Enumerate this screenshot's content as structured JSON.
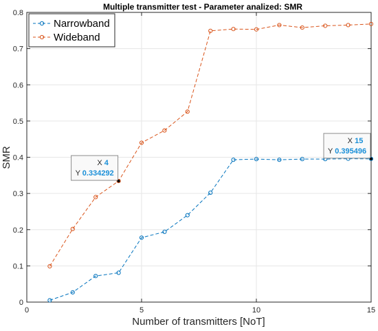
{
  "colors": {
    "narrowband": "#0072BD",
    "wideband": "#D95319",
    "grid": "#e6e6e6",
    "axis": "#262626",
    "datatip_value": "#1a8fd8"
  },
  "chart_data": {
    "type": "line",
    "title": "Multiple transmitter test - Parameter analized: SMR",
    "xlabel": "Number of transmitters [NoT]",
    "ylabel": "SMR",
    "xlim": [
      0,
      15
    ],
    "ylim": [
      0,
      0.8
    ],
    "xticks": [
      0,
      5,
      10,
      15
    ],
    "yticks": [
      0,
      0.1,
      0.2,
      0.3,
      0.4,
      0.5,
      0.6,
      0.7,
      0.8
    ],
    "xtick_labels": [
      "0",
      "5",
      "10",
      "15"
    ],
    "ytick_labels": [
      "0",
      "0.1",
      "0.2",
      "0.3",
      "0.4",
      "0.5",
      "0.6",
      "0.7",
      "0.8"
    ],
    "grid": true,
    "legend_position": "top-left",
    "x": [
      1,
      2,
      3,
      4,
      5,
      6,
      7,
      8,
      9,
      10,
      11,
      12,
      13,
      14,
      15
    ],
    "series": [
      {
        "name": "Narrowband",
        "color": "#0072BD",
        "values": [
          0.005,
          0.027,
          0.072,
          0.081,
          0.178,
          0.194,
          0.24,
          0.302,
          0.393,
          0.395,
          0.393,
          0.395,
          0.395,
          0.396,
          0.395496
        ]
      },
      {
        "name": "Wideband",
        "color": "#D95319",
        "values": [
          0.099,
          0.202,
          0.29,
          0.334292,
          0.44,
          0.474,
          0.526,
          0.749,
          0.754,
          0.753,
          0.765,
          0.758,
          0.763,
          0.765,
          0.768
        ]
      }
    ],
    "datatips": [
      {
        "x_label": "X",
        "y_label": "Y",
        "x": "4",
        "y": "0.334292",
        "px": 4,
        "py": 0.334292,
        "side": "left"
      },
      {
        "x_label": "X",
        "y_label": "Y",
        "x": "15",
        "y": "0.395496",
        "px": 15,
        "py": 0.395496,
        "side": "left"
      }
    ]
  }
}
